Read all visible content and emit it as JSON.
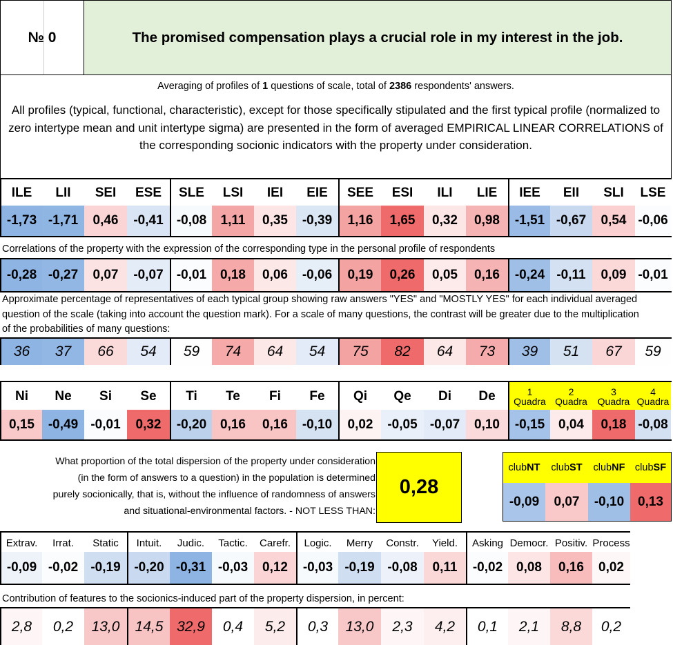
{
  "header": {
    "number_label": "№ 0",
    "question": "The promised compensation plays a crucial role in my interest in the job."
  },
  "averaging": {
    "prefix": "Averaging of profiles of ",
    "questions": "1",
    "middle": " questions of scale, total of ",
    "answers": "2386",
    "suffix": " respondents' answers."
  },
  "description": "All profiles (typical, functional, characteristic), except for those specifically stipulated and the first typical profile (normalized to zero intertype mean and unit intertype sigma) are presented in the form of averaged EMPIRICAL LINEAR CORRELATIONS of the corresponding socionic indicators with the property under consideration.",
  "types": {
    "labels": [
      "ILE",
      "LII",
      "SEI",
      "ESE",
      "SLE",
      "LSI",
      "IEI",
      "EIE",
      "SEE",
      "ESI",
      "ILI",
      "LIE",
      "IEE",
      "EII",
      "SLI",
      "LSE"
    ],
    "profile": [
      "-1,73",
      "-1,71",
      "0,46",
      "-0,41",
      "-0,08",
      "1,11",
      "0,35",
      "-0,39",
      "1,16",
      "1,65",
      "0,32",
      "0,98",
      "-1,51",
      "-0,67",
      "0,54",
      "-0,06"
    ],
    "profile_colors": [
      "#8eb4e3",
      "#8fb5e3",
      "#fbd5d5",
      "#d9e5f4",
      "#f7fafd",
      "#f4a5a5",
      "#fde5e5",
      "#dae6f4",
      "#f4a3a3",
      "#ef6a6a",
      "#fde6e6",
      "#f6b3b3",
      "#99bbe6",
      "#c7d8ef",
      "#fbd0d0",
      "#fbfcfe"
    ],
    "corr_note": "Correlations of the property with the expression of the corresponding type in the personal profile of respondents",
    "correlations": [
      "-0,28",
      "-0,27",
      "0,07",
      "-0,07",
      "-0,01",
      "0,18",
      "0,06",
      "-0,06",
      "0,19",
      "0,26",
      "0,05",
      "0,16",
      "-0,24",
      "-0,11",
      "0,09",
      "-0,01"
    ],
    "corr_colors": [
      "#8eb4e3",
      "#92b7e4",
      "#fce3e3",
      "#e3ecf7",
      "#fbfcfe",
      "#f5a9a9",
      "#fde8e8",
      "#e6eef8",
      "#f4a3a3",
      "#ef6a6a",
      "#fdeaea",
      "#f6b3b3",
      "#9fbfe7",
      "#d3e1f2",
      "#fbd9d9",
      "#fbfcfe"
    ],
    "pct_note": "Approximate percentage of representatives of each typical group showing raw answers \"YES\" and \"MOSTLY YES\" for each individual averaged question of the scale (taking into account the question mark). For a scale of many questions, the contrast will be greater due to the multiplication of the probabilities of many questions:",
    "percentages": [
      "36",
      "37",
      "66",
      "54",
      "59",
      "74",
      "64",
      "54",
      "75",
      "82",
      "64",
      "73",
      "39",
      "51",
      "67",
      "59"
    ],
    "pct_colors": [
      "#8eb4e3",
      "#92b7e4",
      "#fbdada",
      "#e2ebf7",
      "#fefefe",
      "#f5a9a9",
      "#fde8e8",
      "#e2ebf7",
      "#f4a3a3",
      "#ef6a6a",
      "#fde8e8",
      "#f5abab",
      "#9fbfe7",
      "#d4e2f2",
      "#fbd6d6",
      "#fefefe"
    ]
  },
  "functions": {
    "labels": [
      "Ni",
      "Ne",
      "Si",
      "Se",
      "Ti",
      "Te",
      "Fi",
      "Fe",
      "Qi",
      "Qe",
      "Di",
      "De"
    ],
    "values": [
      "0,15",
      "-0,49",
      "-0,01",
      "0,32",
      "-0,20",
      "0,16",
      "0,16",
      "-0,10",
      "0,02",
      "-0,05",
      "-0,07",
      "0,10"
    ],
    "colors": [
      "#f9c9c9",
      "#8eb4e3",
      "#fbfcfe",
      "#ef6a6a",
      "#bcd1ec",
      "#f8c4c4",
      "#f8c4c4",
      "#d5e2f2",
      "#fdf3f3",
      "#e9f0f9",
      "#e2ebf7",
      "#fadada"
    ]
  },
  "quadras": {
    "labels": [
      {
        "num": "1",
        "word": "Quadra"
      },
      {
        "num": "2",
        "word": "Quadra"
      },
      {
        "num": "3",
        "word": "Quadra"
      },
      {
        "num": "4",
        "word": "Quadra"
      }
    ],
    "values": [
      "-0,15",
      "0,04",
      "0,18",
      "-0,08"
    ],
    "colors": [
      "#a5c3e8",
      "#fdeaea",
      "#ef6a6a",
      "#d3e1f2"
    ]
  },
  "dispersion": {
    "line1": "What proportion of the total dispersion of the property under consideration",
    "line2": "(in the form of answers to a question) in the population is determined",
    "line3": "purely socionically, that is, without the influence of randomness of answers",
    "line4": "and situational-environmental factors. - NOT LESS THAN:",
    "value": "0,28"
  },
  "clubs": {
    "labels": [
      {
        "pre": "club",
        "bold": "NT"
      },
      {
        "pre": "club",
        "bold": "ST"
      },
      {
        "pre": "club",
        "bold": "NF"
      },
      {
        "pre": "club",
        "bold": "SF"
      }
    ],
    "values": [
      "-0,09",
      "0,07",
      "-0,10",
      "0,13"
    ],
    "colors": [
      "#a9c5e9",
      "#f9c9c9",
      "#9fbfe7",
      "#ef6a6a"
    ]
  },
  "traits": {
    "labels": [
      "Extrav.",
      "Irrat.",
      "Static",
      "Intuit.",
      "Judic.",
      "Tactic.",
      "Carefr.",
      "Logic.",
      "Merry",
      "Constr.",
      "Yield.",
      "Asking",
      "Democr.",
      "Positiv.",
      "Process"
    ],
    "values": [
      "-0,09",
      "-0,02",
      "-0,19",
      "-0,20",
      "-0,31",
      "-0,03",
      "0,12",
      "-0,03",
      "-0,19",
      "-0,08",
      "0,11",
      "-0,02",
      "0,08",
      "0,16",
      "0,02"
    ],
    "colors": [
      "#eef3fa",
      "#fbfcfe",
      "#cfdef1",
      "#c9daf0",
      "#8eb4e3",
      "#f7fafd",
      "#fbd5d5",
      "#f7fafd",
      "#cfdef1",
      "#edf2fa",
      "#fbd8d8",
      "#fbfcfe",
      "#fde5e5",
      "#f8bcbc",
      "#fef7f7"
    ],
    "contrib_note": "Contribution of features to the socionics-induced part of the property dispersion, in percent:",
    "contrib": [
      "2,8",
      "0,2",
      "13,0",
      "14,5",
      "32,9",
      "0,4",
      "5,2",
      "0,3",
      "13,0",
      "2,3",
      "4,2",
      "0,1",
      "2,1",
      "8,8",
      "0,2"
    ],
    "contrib_colors": [
      "#fef6f6",
      "#ffffff",
      "#f8c8c8",
      "#f8c3c3",
      "#ef6a6a",
      "#ffffff",
      "#fdecec",
      "#ffffff",
      "#f8c8c8",
      "#fef6f6",
      "#fdefef",
      "#ffffff",
      "#fef6f6",
      "#fbd9d9",
      "#ffffff"
    ]
  }
}
